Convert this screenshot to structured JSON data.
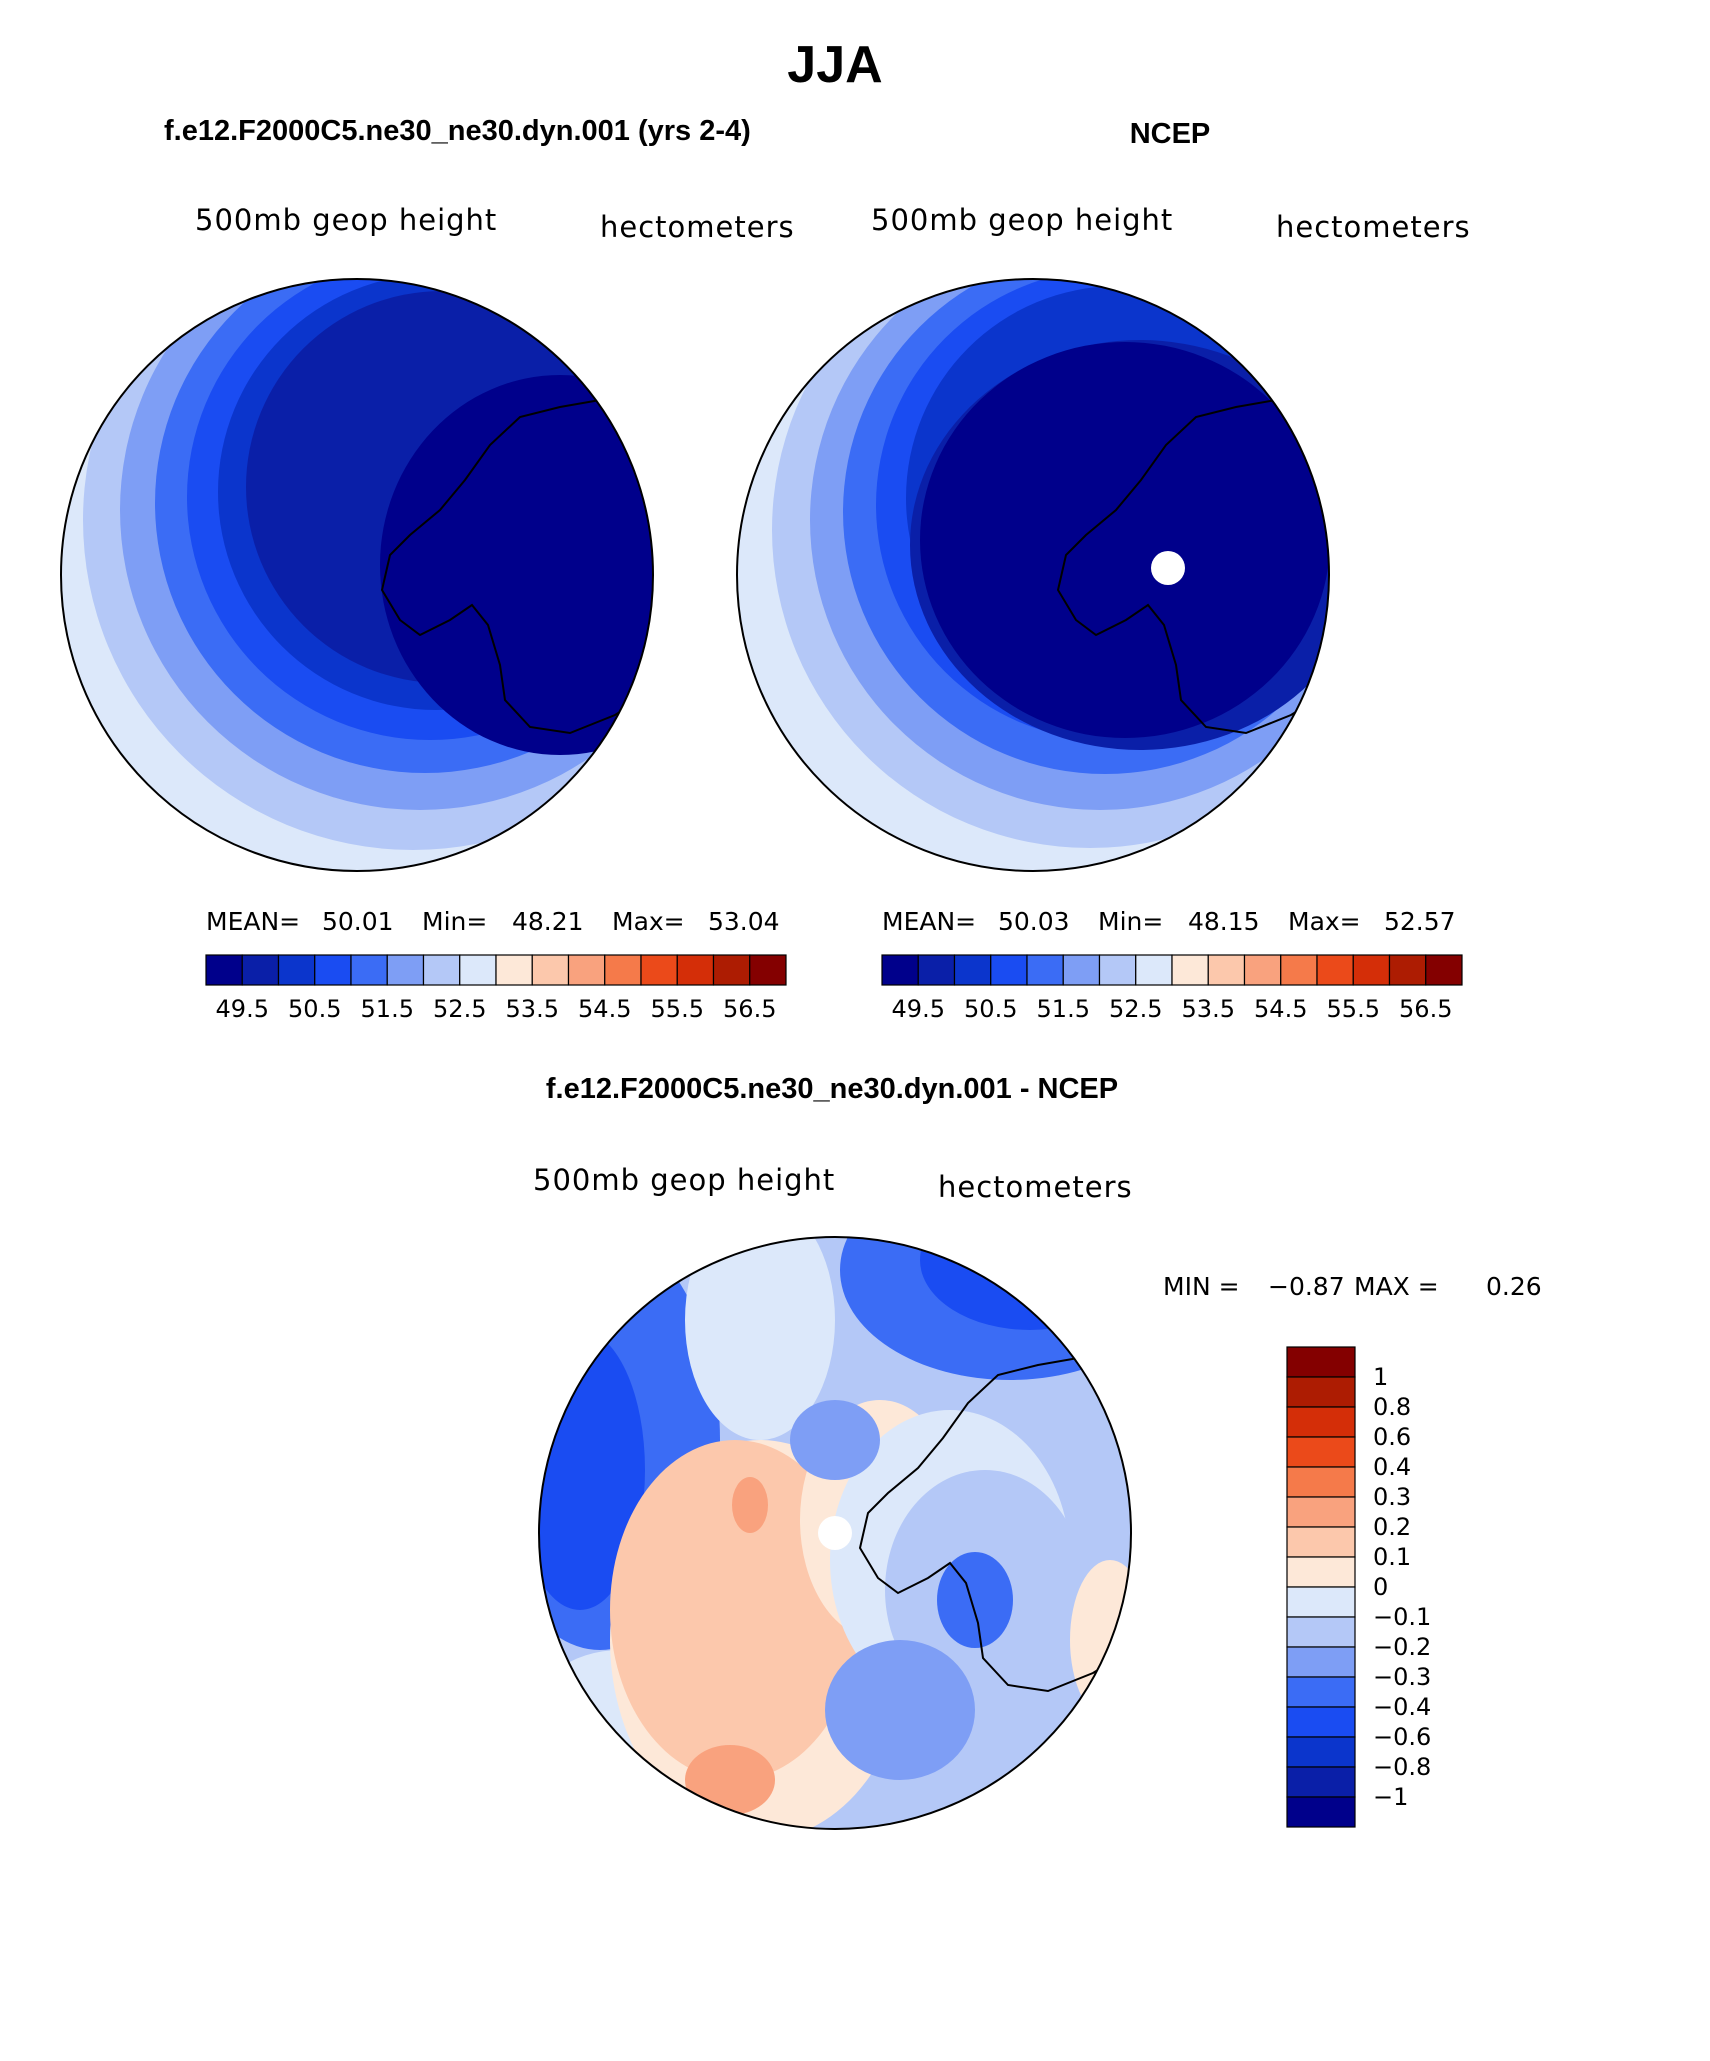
{
  "figure": {
    "title": "JJA",
    "panels": [
      {
        "header": "f.e12.F2000C5.ne30_ne30.dyn.001 (yrs 2-4)",
        "variable": "500mb geop height",
        "units": "hectometers",
        "stats": {
          "mean_label": "MEAN=",
          "mean": "50.01",
          "min_label": "Min=",
          "min": "48.21",
          "max_label": "Max=",
          "max": "53.04"
        }
      },
      {
        "header": "NCEP",
        "variable": "500mb geop height",
        "units": "hectometers",
        "stats": {
          "mean_label": "MEAN=",
          "mean": "50.03",
          "min_label": "Min=",
          "min": "48.15",
          "max_label": "Max=",
          "max": "52.57"
        }
      },
      {
        "header": "f.e12.F2000C5.ne30_ne30.dyn.001 - NCEP",
        "variable": "500mb geop height",
        "units": "hectometers",
        "stats": {
          "min_label": "MIN =",
          "min": "−0.87",
          "max_label": "MAX =",
          "max": "0.26"
        }
      }
    ],
    "colorbar_abs": {
      "colors": [
        "#00008b",
        "#0a1fa8",
        "#0b35cc",
        "#1a4cf2",
        "#3b6cf5",
        "#7e9ef5",
        "#b4c8f7",
        "#dce8fa",
        "#fde8d8",
        "#fcc8ac",
        "#f9a27e",
        "#f57a4a",
        "#eb4a1a",
        "#d42e08",
        "#ad1c02",
        "#840000"
      ],
      "labels": [
        "49.5",
        "50.5",
        "51.5",
        "52.5",
        "53.5",
        "54.5",
        "55.5",
        "56.5"
      ]
    },
    "colorbar_diff": {
      "colors": [
        "#840000",
        "#ad1c02",
        "#d42e08",
        "#eb4a1a",
        "#f57a4a",
        "#f9a27e",
        "#fcc8ac",
        "#fde8d8",
        "#dce8fa",
        "#b4c8f7",
        "#7e9ef5",
        "#3b6cf5",
        "#1a4cf2",
        "#0b35cc",
        "#0a1fa8",
        "#00008b"
      ],
      "labels": [
        "1",
        "0.8",
        "0.6",
        "0.4",
        "0.3",
        "0.2",
        "0.1",
        "0",
        "−0.1",
        "−0.2",
        "−0.3",
        "−0.4",
        "−0.6",
        "−0.8",
        "−1"
      ]
    }
  }
}
